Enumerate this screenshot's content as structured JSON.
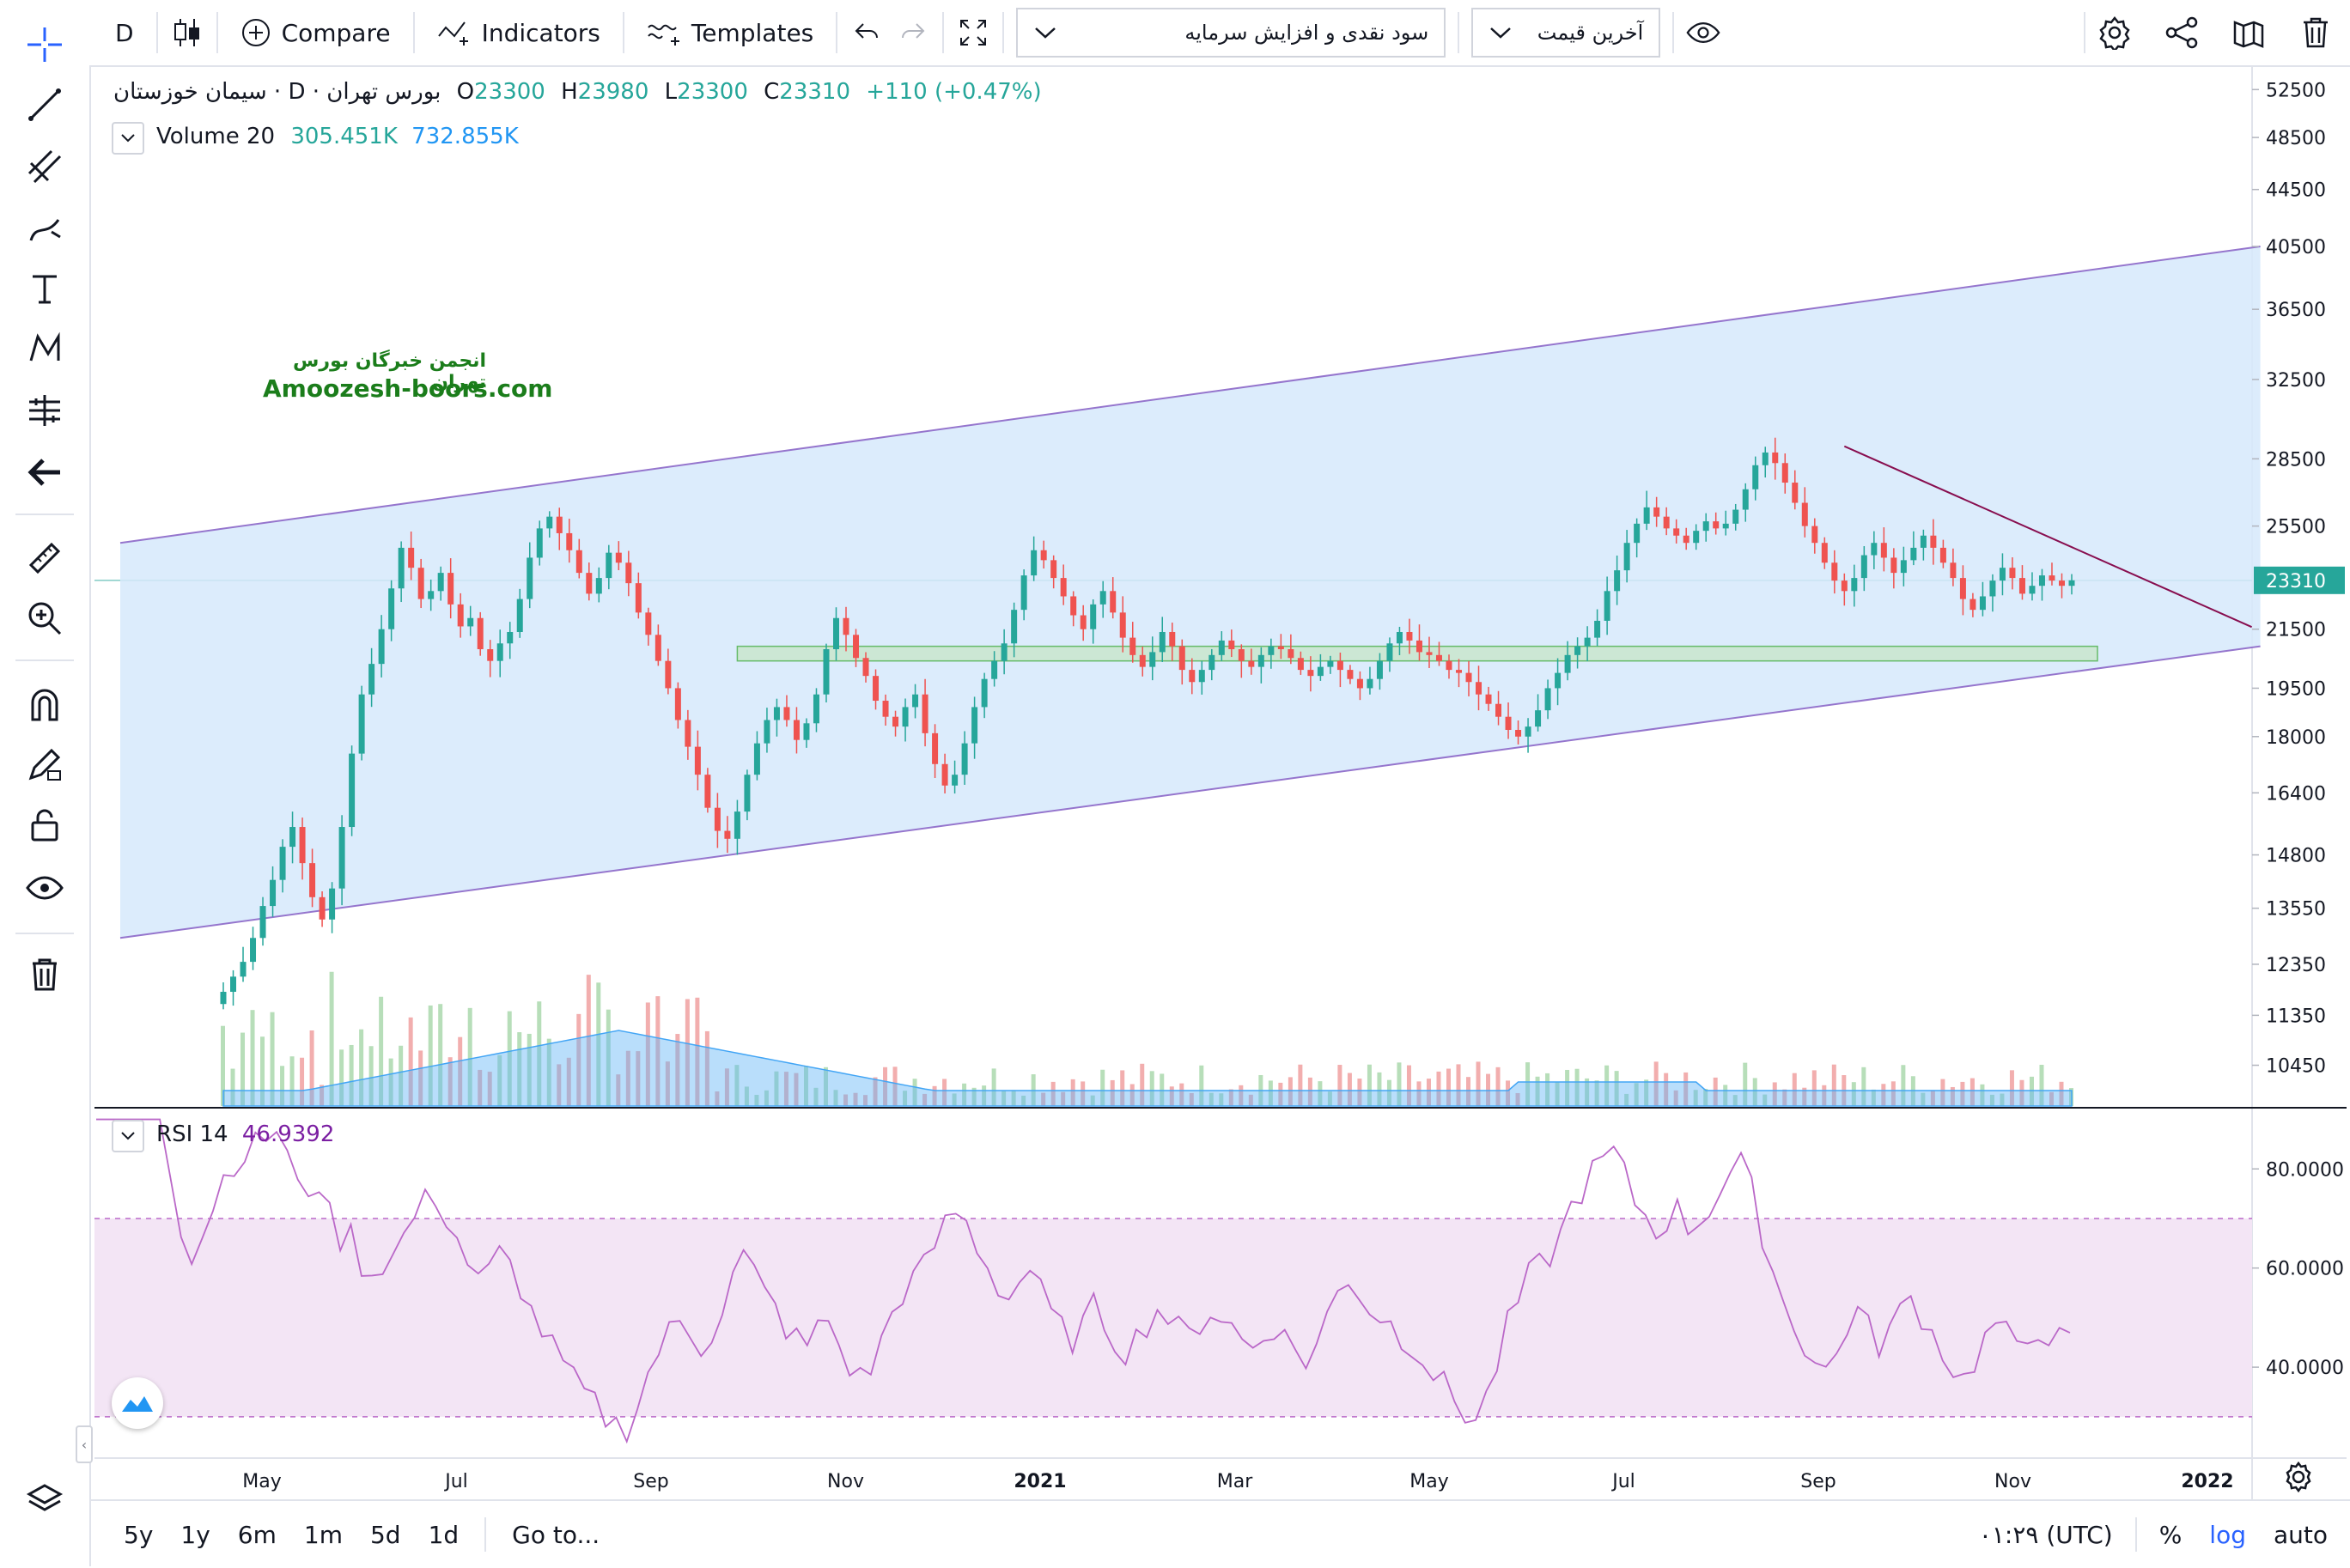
{
  "toolbar": {
    "interval": "D",
    "compare": "Compare",
    "indicators": "Indicators",
    "templates": "Templates",
    "dropdown_1": "سود نقدی و افزایش سرمایه",
    "dropdown_2": "آخرین قیمت"
  },
  "legend": {
    "symbol": "سیمان خوزستان · D · بورس تهران",
    "o_label": "O",
    "o": "23300",
    "h_label": "H",
    "h": "23980",
    "l_label": "L",
    "l": "23300",
    "c_label": "C",
    "c": "23310",
    "change": "+110 (+0.47%)",
    "volume_label": "Volume 20",
    "volume_1": "305.451K",
    "volume_2": "732.855K",
    "rsi_label": "RSI 14",
    "rsi_value": "46.9392"
  },
  "watermark": {
    "line1": "انجمن خبرگان بورس تهران",
    "line2": "Amoozesh-boors.com"
  },
  "bottom": {
    "ranges": [
      "5y",
      "1y",
      "6m",
      "1m",
      "5d",
      "1d"
    ],
    "goto": "Go to...",
    "time": "۰۱:۲۹ (UTC)",
    "percent": "%",
    "log": "log",
    "auto": "auto"
  },
  "colors": {
    "up": "#26a69a",
    "down": "#ef5350",
    "channel": "#d6e9fb",
    "rsi_band": "#f3e5f5",
    "rsi_line": "#ba68c8"
  },
  "chart_data": {
    "type": "candlestick",
    "scale": "log",
    "last_price": "23310",
    "y_ticks": [
      "52500",
      "48500",
      "44500",
      "40500",
      "36500",
      "32500",
      "28500",
      "25500",
      "21500",
      "19500",
      "18000",
      "16400",
      "14800",
      "13550",
      "12350",
      "11350",
      "10450"
    ],
    "y_tick_values": [
      52500,
      48500,
      44500,
      40500,
      36500,
      32500,
      28500,
      25500,
      21500,
      19500,
      18000,
      16400,
      14800,
      13550,
      12350,
      11350,
      10450
    ],
    "x_ticks": [
      "May",
      "Jul",
      "Sep",
      "Nov",
      "2021",
      "Mar",
      "May",
      "Jul",
      "Sep",
      "Nov",
      "2022"
    ],
    "x_tick_bold": [
      "2021",
      "2022"
    ],
    "closes": [
      11800,
      12100,
      12400,
      12900,
      13600,
      14200,
      15000,
      15500,
      14600,
      13800,
      13300,
      14000,
      15500,
      17500,
      19300,
      20300,
      21500,
      23000,
      24600,
      23800,
      22600,
      22900,
      23600,
      22400,
      21600,
      21900,
      20800,
      20400,
      21000,
      21400,
      22600,
      24200,
      25400,
      25900,
      25200,
      24500,
      23600,
      22800,
      23400,
      24400,
      24000,
      23200,
      22100,
      21300,
      20400,
      19500,
      18500,
      17700,
      16900,
      16000,
      15400,
      15200,
      15900,
      16900,
      17800,
      18500,
      18900,
      18500,
      17900,
      18400,
      19300,
      20800,
      21900,
      21300,
      20500,
      19900,
      19100,
      18600,
      18300,
      18900,
      19300,
      18100,
      17200,
      16600,
      16900,
      17800,
      18900,
      19800,
      20400,
      21000,
      22200,
      23500,
      24500,
      24100,
      23400,
      22700,
      22000,
      21500,
      22400,
      22900,
      22100,
      21200,
      20600,
      20200,
      20700,
      21400,
      20900,
      20100,
      19700,
      20100,
      20600,
      21100,
      20800,
      20400,
      20200,
      20600,
      20900,
      20800,
      20500,
      20100,
      19900,
      20200,
      20400,
      20100,
      19800,
      19500,
      19800,
      20400,
      21000,
      21400,
      21100,
      20700,
      20600,
      20400,
      20100,
      20000,
      19700,
      19300,
      19000,
      18600,
      18200,
      18000,
      18300,
      18800,
      19500,
      20000,
      20600,
      20900,
      21200,
      21800,
      22900,
      23700,
      24800,
      25600,
      26300,
      25900,
      25400,
      25100,
      24800,
      25300,
      25700,
      25400,
      25600,
      26200,
      27100,
      28200,
      28800,
      28300,
      27400,
      26500,
      25500,
      24800,
      24000,
      23300,
      22900,
      23400,
      24300,
      24800,
      24200,
      23600,
      24100,
      24600,
      25100,
      24600,
      24000,
      23400,
      22600,
      22200,
      22700,
      23300,
      23800,
      23400,
      22800,
      23100,
      23500,
      23300,
      23100,
      23310
    ],
    "channel": {
      "upper": [
        [
          0,
          24800
        ],
        [
          200,
          40500
        ]
      ],
      "lower": [
        [
          0,
          12900
        ],
        [
          200,
          20900
        ]
      ]
    },
    "support_zone": [
      20400,
      20900
    ],
    "trendline": [
      [
        164,
        29100
      ],
      [
        200,
        22200
      ]
    ],
    "rsi_ticks": [
      "80.0000",
      "60.0000",
      "40.0000"
    ],
    "rsi_tick_values": [
      80,
      60,
      40
    ],
    "rsi_band": [
      30,
      70
    ],
    "rsi_last": 46.9392
  }
}
